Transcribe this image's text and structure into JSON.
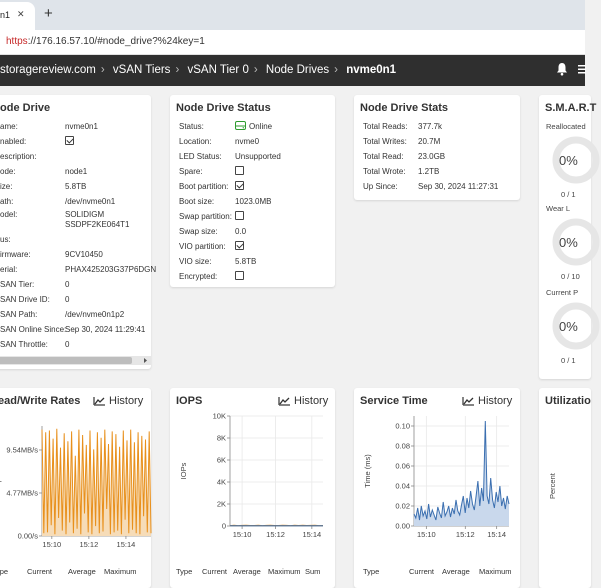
{
  "browser": {
    "tab_title": "n1",
    "tab_close": "✕",
    "new_tab": "+",
    "url_scheme": "https",
    "url_rest": "://176.16.57.10/#node_drive?%24key=1"
  },
  "breadcrumb": [
    "storagereview.com",
    "vSAN Tiers",
    "vSAN Tier 0",
    "Node Drives",
    "nvme0n1"
  ],
  "node_drive": {
    "title": "ode Drive",
    "rows": [
      {
        "label": "ame:",
        "value": "nvme0n1"
      },
      {
        "label": "nabled:",
        "value": ""
      },
      {
        "label": "escription:",
        "value": ""
      },
      {
        "label": "ode:",
        "value": "node1"
      },
      {
        "label": "ize:",
        "value": "5.8TB"
      },
      {
        "label": "ath:",
        "value": "/dev/nvme0n1"
      },
      {
        "label": "odel:",
        "value": "SOLIDIGM"
      },
      {
        "label": "",
        "value": "SSDPF2KE064T1"
      },
      {
        "label": "us:",
        "value": ""
      },
      {
        "label": "irmware:",
        "value": "9CV10450"
      },
      {
        "label": "erial:",
        "value": "PHAX425203G37P6DGN"
      },
      {
        "label": "SAN Tier:",
        "value": "0"
      },
      {
        "label": "SAN Drive ID:",
        "value": "0"
      },
      {
        "label": "SAN Path:",
        "value": "/dev/nvme0n1p2"
      },
      {
        "label": "SAN Online Since:",
        "value": "Sep 30, 2024 11:29:41"
      },
      {
        "label": "SAN Throttle:",
        "value": "0"
      }
    ]
  },
  "status": {
    "title": "Node Drive Status",
    "status_label": "Status:",
    "status_value": "Online",
    "location_label": "Location:",
    "location_value": "nvme0",
    "led_label": "LED Status:",
    "led_value": "Unsupported",
    "spare_label": "Spare:",
    "bootpart_label": "Boot partition:",
    "bootsize_label": "Boot size:",
    "bootsize_value": "1023.0MB",
    "swappart_label": "Swap partition:",
    "swapsize_label": "Swap size:",
    "swapsize_value": "0.0",
    "viopart_label": "VIO partition:",
    "viosize_label": "VIO size:",
    "viosize_value": "5.8TB",
    "enc_label": "Encrypted:"
  },
  "stats": {
    "title": "Node Drive Stats",
    "rows": [
      {
        "label": "Total Reads:",
        "value": "377.7k"
      },
      {
        "label": "Total Writes:",
        "value": "20.7M"
      },
      {
        "label": "Total Read:",
        "value": "23.0GB"
      },
      {
        "label": "Total Wrote:",
        "value": "1.2TB"
      },
      {
        "label": "Up Since:",
        "value": "Sep 30, 2024 11:27:31"
      }
    ]
  },
  "smart": {
    "title": "S.M.A.R.T",
    "gauges": [
      {
        "top": "Reallocated",
        "pct": "0%",
        "bottom": "0 / 1"
      },
      {
        "top": "Wear L",
        "pct": "0%",
        "bottom": "0 / 10"
      },
      {
        "top": "Current P",
        "pct": "0%",
        "bottom": "0 / 1"
      }
    ]
  },
  "rw": {
    "title": "ead/Write Rates",
    "history": "History",
    "ylabel": "Bps",
    "cols": [
      "ype",
      "Current",
      "Average",
      "Maximum"
    ]
  },
  "iops": {
    "title": "IOPS",
    "history": "History",
    "ylabel": "IOPs",
    "cols": [
      "Type",
      "Current",
      "Average",
      "Maximum",
      "Sum"
    ]
  },
  "svc": {
    "title": "Service Time",
    "history": "History",
    "ylabel": "Time (ms)",
    "cols": [
      "Type",
      "Current",
      "Average",
      "Maximum"
    ]
  },
  "util": {
    "title": "Utilizatio",
    "ylabel": "Percent"
  },
  "colors": {
    "accent": "#e8901c",
    "blue": "#3b6fb0",
    "online": "#2e9b2e"
  },
  "chart_data": [
    {
      "type": "area",
      "title": "Read/Write Rates",
      "ylabel": "Bps",
      "yticks": [
        "0.00/s",
        "4.77MB/s",
        "9.54MB/s"
      ],
      "xticks": [
        "15:10",
        "15:12",
        "15:14"
      ],
      "ylim": [
        0,
        12.2
      ],
      "series": [
        {
          "values": [
            11.8,
            0.3,
            11.5,
            0.4,
            11.7,
            1.2,
            10.8,
            0.2,
            11.9,
            2.0,
            9.8,
            0.6,
            11.4,
            0.2,
            10.5,
            1.5,
            11.6,
            0.3,
            8.9,
            0.8,
            11.8,
            0.2,
            11.2,
            2.5,
            10.1,
            0.4,
            11.7,
            0.2,
            9.6,
            1.1,
            11.5,
            0.3,
            10.9,
            0.5,
            11.8,
            3.0,
            10.2,
            0.2,
            11.6,
            0.4,
            11.3,
            0.6,
            9.9,
            0.2,
            11.7,
            1.8,
            10.6,
            0.3,
            11.8,
            0.7,
            10.4,
            0.3,
            11.5,
            0.2,
            11.1,
            2.2,
            10.7,
            0.4,
            11.6,
            0.3
          ]
        }
      ]
    },
    {
      "type": "line",
      "title": "IOPS",
      "ylabel": "IOPs",
      "yticks": [
        "0",
        "2K",
        "4K",
        "6K",
        "8K",
        "10K"
      ],
      "xticks": [
        "15:10",
        "15:12",
        "15:14"
      ],
      "ylim": [
        0,
        10000
      ],
      "series": [
        {
          "values": [
            40,
            60,
            35,
            55,
            70,
            45,
            50,
            65,
            40,
            55,
            60,
            50,
            45,
            70,
            55,
            40,
            60,
            50,
            65,
            45,
            55,
            60,
            40,
            50
          ]
        },
        {
          "values": [
            20,
            15,
            25,
            20,
            30,
            18,
            22,
            20,
            25,
            15,
            20,
            22,
            18,
            25,
            20,
            15,
            22,
            20,
            25,
            18,
            20,
            22,
            15,
            20
          ]
        }
      ]
    },
    {
      "type": "area",
      "title": "Service Time",
      "ylabel": "Time (ms)",
      "yticks": [
        "0.00",
        "0.02",
        "0.04",
        "0.06",
        "0.08",
        "0.10"
      ],
      "xticks": [
        "15:10",
        "15:12",
        "15:14"
      ],
      "ylim": [
        0,
        0.11
      ],
      "series": [
        {
          "values": [
            0.012,
            0.008,
            0.018,
            0.006,
            0.02,
            0.01,
            0.015,
            0.007,
            0.022,
            0.009,
            0.016,
            0.011,
            0.006,
            0.019,
            0.013,
            0.008,
            0.024,
            0.01,
            0.014,
            0.02,
            0.009,
            0.018,
            0.012,
            0.026,
            0.015,
            0.011,
            0.021,
            0.03,
            0.013,
            0.028,
            0.018,
            0.035,
            0.022,
            0.016,
            0.03,
            0.045,
            0.02,
            0.038,
            0.025,
            0.105,
            0.03,
            0.022,
            0.048,
            0.026,
            0.018,
            0.034,
            0.024,
            0.04,
            0.02,
            0.028,
            0.017,
            0.03,
            0.022
          ]
        }
      ]
    }
  ]
}
